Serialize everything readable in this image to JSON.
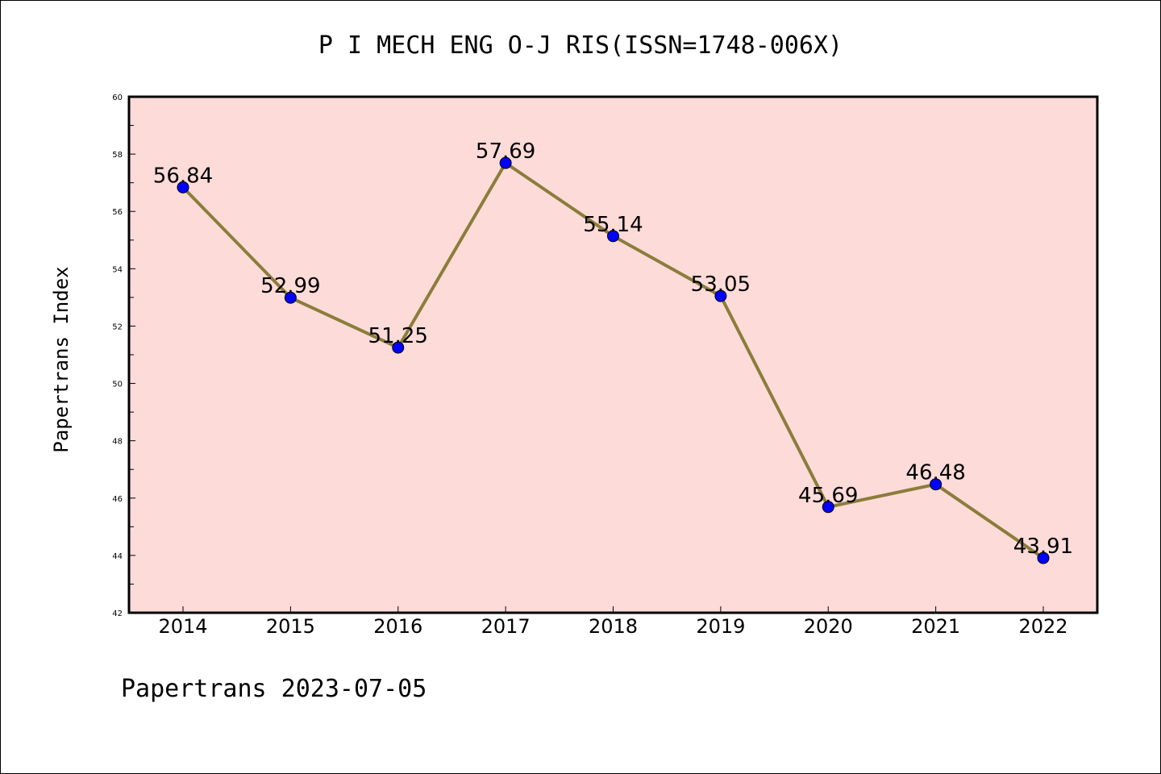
{
  "chart_data": {
    "type": "line",
    "title": "P I MECH ENG O-J RIS(ISSN=1748-006X)",
    "ylabel": "Papertrans Index",
    "xlabel": "",
    "footer": "Papertrans 2023-07-05",
    "categories": [
      "2014",
      "2015",
      "2016",
      "2017",
      "2018",
      "2019",
      "2020",
      "2021",
      "2022"
    ],
    "series": [
      {
        "values": [
          56.84,
          52.99,
          51.25,
          57.69,
          55.14,
          53.05,
          45.69,
          46.48,
          43.91
        ],
        "labels": [
          "56.84",
          "52.99",
          "51.25",
          "57.69",
          "55.14",
          "53.05",
          "45.69",
          "46.48",
          "43.91"
        ]
      }
    ],
    "ylim": [
      42,
      60
    ],
    "yticks": [
      42,
      44,
      46,
      48,
      50,
      52,
      54,
      56,
      58,
      60
    ],
    "grid": false,
    "legend": "none",
    "colors": {
      "plot_background": "#fddbd9",
      "line": "#8b7d3a",
      "marker": "#0000ff",
      "axis": "#000000"
    }
  }
}
